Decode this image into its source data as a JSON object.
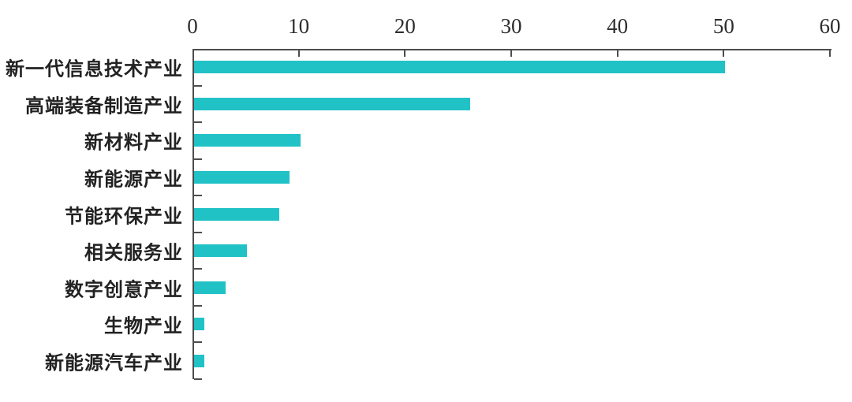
{
  "chart_data": {
    "type": "bar",
    "orientation": "horizontal",
    "title": "",
    "xlabel": "",
    "ylabel": "",
    "categories": [
      "新一代信息技术产业",
      "高端装备制造产业",
      "新材料产业",
      "新能源产业",
      "节能环保产业",
      "相关服务业",
      "数字创意产业",
      "生物产业",
      "新能源汽车产业"
    ],
    "values": [
      50,
      26,
      10,
      9,
      8,
      5,
      3,
      1,
      1
    ],
    "x_axis": {
      "position": "top",
      "ticks": [
        0,
        10,
        20,
        30,
        40,
        50,
        60
      ],
      "range": [
        0,
        60
      ]
    },
    "grid": false,
    "legend": false,
    "data_labels": false,
    "colors": {
      "bar": "#21c2c6",
      "axis": "#4d4d4d",
      "tick_label": "#2e2e2e",
      "category_label": "#222222",
      "background": "#ffffff"
    }
  }
}
